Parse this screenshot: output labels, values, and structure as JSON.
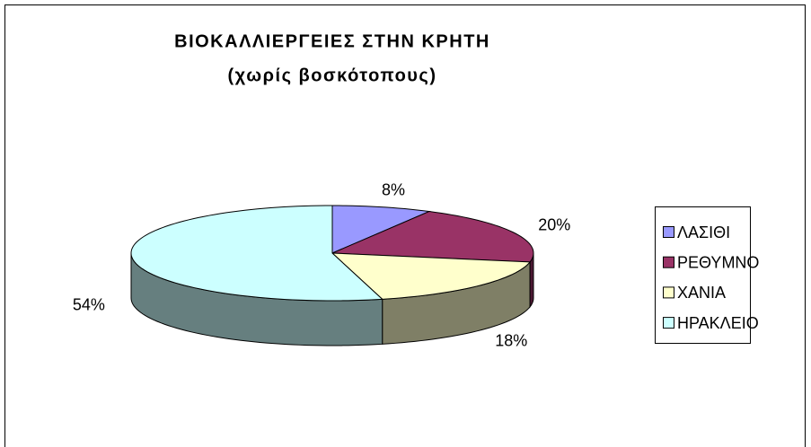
{
  "chart_data": {
    "type": "pie3d",
    "title": "ΒΙΟΚΑΛΛΙΕΡΓΕΙΕΣ ΣΤΗΝ ΚΡΗΤΗ",
    "subtitle": "(χωρίς βοσκότοπους)",
    "categories": [
      "ΛΑΣΙΘΙ",
      "ΡΕΘΥΜΝΟ",
      "ΧΑΝΙΑ",
      "ΗΡΑΚΛΕΙΟ"
    ],
    "values": [
      8,
      20,
      18,
      54
    ],
    "value_labels": [
      "8%",
      "20%",
      "18%",
      "54%"
    ],
    "colors": [
      "#9999ff",
      "#993366",
      "#ffffcc",
      "#ccffff"
    ],
    "legend": "right"
  }
}
